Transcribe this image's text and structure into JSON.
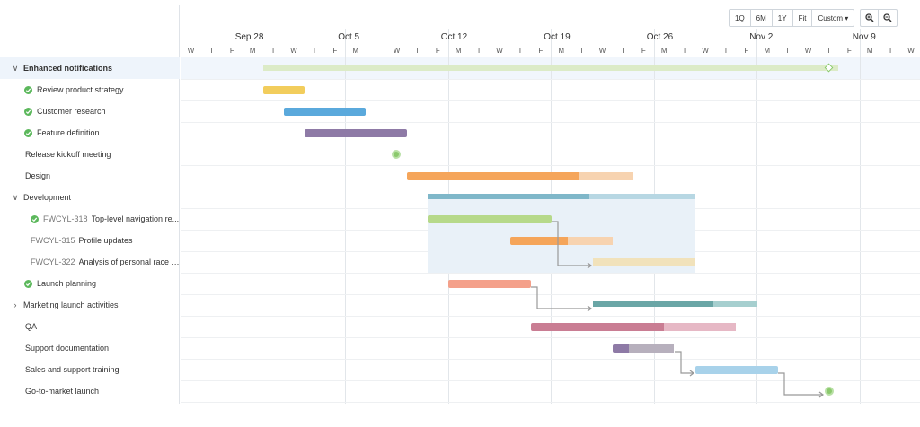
{
  "zoom": {
    "buttons": [
      "1Q",
      "6M",
      "1Y",
      "Fit"
    ],
    "custom": "Custom ▾"
  },
  "weeks": [
    "Sep 28",
    "Oct 5",
    "Oct 12",
    "Oct 19",
    "Oct 26",
    "Nov 2",
    "Nov 9"
  ],
  "days": [
    "W",
    "T",
    "F",
    "M",
    "T",
    "W",
    "T",
    "F",
    "M",
    "T",
    "W",
    "T",
    "F",
    "M",
    "T",
    "W",
    "T",
    "F",
    "M",
    "T",
    "W",
    "T",
    "F",
    "M",
    "T",
    "W",
    "T",
    "F",
    "M",
    "T",
    "W",
    "T",
    "F",
    "M",
    "T",
    "W"
  ],
  "tasks": [
    {
      "name": "Enhanced notifications",
      "chevron": "∨",
      "bold": true,
      "selected": true
    },
    {
      "name": "Review product strategy",
      "done": true
    },
    {
      "name": "Customer research",
      "done": true
    },
    {
      "name": "Feature definition",
      "done": true
    },
    {
      "name": "Release kickoff meeting"
    },
    {
      "name": "Design"
    },
    {
      "name": "Development",
      "chevron": "∨"
    },
    {
      "key": "FWCYL-318",
      "name": "Top-level navigation re...",
      "done": true,
      "indent": true
    },
    {
      "key": "FWCYL-315",
      "name": "Profile updates",
      "indent": true
    },
    {
      "key": "FWCYL-322",
      "name": "Analysis of personal race g...",
      "indent": true
    },
    {
      "name": "Launch planning",
      "done": true
    },
    {
      "name": "Marketing launch activities",
      "chevron": "›"
    },
    {
      "name": "QA"
    },
    {
      "name": "Support documentation"
    },
    {
      "name": "Sales and support training"
    },
    {
      "name": "Go-to-market launch"
    }
  ],
  "colors": {
    "yellow": "#f2cd5c",
    "blue": "#5aa9dc",
    "purple": "#8e7aa6",
    "orange": "#f5a55a",
    "orange_light": "#f7d3b0",
    "teal": "#7fb7c9",
    "teal_light": "#b7d7e3",
    "green": "#b6d98a",
    "salmon": "#f4a08a",
    "teal_dark": "#6aa6a6",
    "pink": "#c97d93",
    "pink_light": "#e6b8c5",
    "grey": "#b7b0bd",
    "sky": "#a8d2ea",
    "summary_green": "#dcebc7",
    "dev_region": "#e9f1f8",
    "check": "#5cb85c"
  }
}
